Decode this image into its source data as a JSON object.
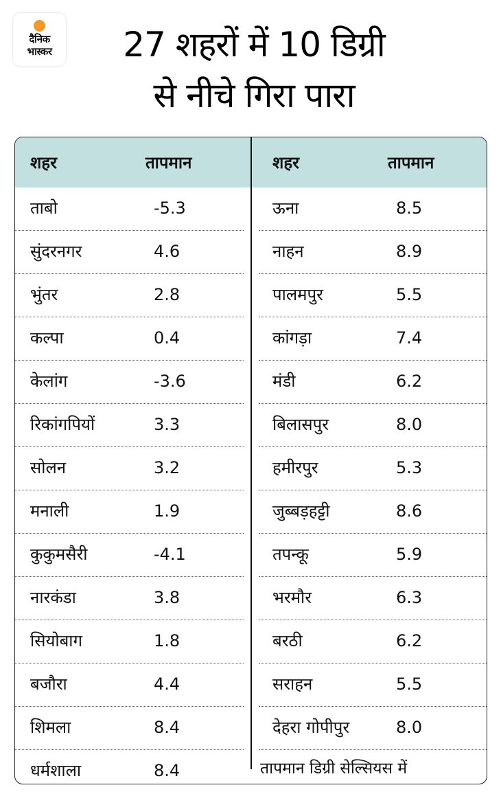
{
  "logo": {
    "line1": "दैनिक",
    "line2": "भास्कर",
    "accent_color": "#f39a2b"
  },
  "title": {
    "line1": "27 शहरों में 10 डिग्री",
    "line2": "से नीचे गिरा पारा"
  },
  "table": {
    "header_color": "#c3e0e1",
    "columns": [
      "शहर",
      "तापमान"
    ],
    "left": [
      {
        "city": "ताबो",
        "temp": "-5.3"
      },
      {
        "city": "सुंदरनगर",
        "temp": "4.6"
      },
      {
        "city": "भुंतर",
        "temp": "2.8"
      },
      {
        "city": "कल्पा",
        "temp": "0.4"
      },
      {
        "city": "केलांग",
        "temp": "-3.6"
      },
      {
        "city": "रिकांगपियों",
        "temp": "3.3"
      },
      {
        "city": "सोलन",
        "temp": "3.2"
      },
      {
        "city": "मनाली",
        "temp": "1.9"
      },
      {
        "city": "कुकुमसैरी",
        "temp": "-4.1"
      },
      {
        "city": "नारकंडा",
        "temp": "3.8"
      },
      {
        "city": "सियोबाग",
        "temp": "1.8"
      },
      {
        "city": "बजौरा",
        "temp": "4.4"
      },
      {
        "city": "शिमला",
        "temp": "8.4"
      },
      {
        "city": "धर्मशाला",
        "temp": "8.4"
      }
    ],
    "right": [
      {
        "city": "ऊना",
        "temp": "8.5"
      },
      {
        "city": "नाहन",
        "temp": "8.9"
      },
      {
        "city": "पालमपुर",
        "temp": "5.5"
      },
      {
        "city": "कांगड़ा",
        "temp": "7.4"
      },
      {
        "city": "मंडी",
        "temp": "6.2"
      },
      {
        "city": "बिलासपुर",
        "temp": "8.0"
      },
      {
        "city": "हमीरपुर",
        "temp": "5.3"
      },
      {
        "city": "जुब्बड़हट्टी",
        "temp": "8.6"
      },
      {
        "city": "तपन्कू",
        "temp": "5.9"
      },
      {
        "city": "भरमौर",
        "temp": "6.3"
      },
      {
        "city": "बरठी",
        "temp": "6.2"
      },
      {
        "city": "सराहन",
        "temp": "5.5"
      },
      {
        "city": "देहरा गोपीपुर",
        "temp": "8.0"
      }
    ],
    "footnote": "तापमान डिग्री सेल्सियस में"
  }
}
